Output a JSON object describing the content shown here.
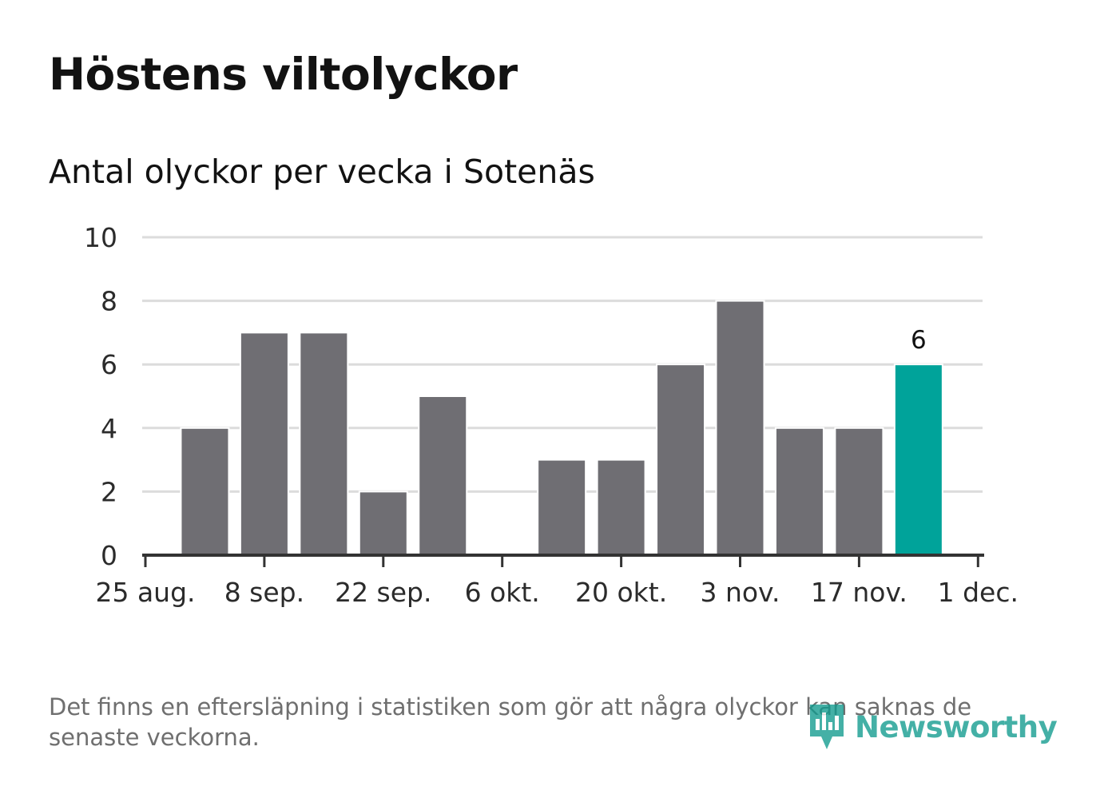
{
  "title": "Höstens viltolyckor",
  "subtitle": "Antal olyckor per vecka i Sotenäs",
  "footnote": "Det finns en eftersläpning i statistiken som gör att några olyckor kan saknas de senaste veckorna.",
  "logo": {
    "text": "Newsworthy",
    "icon": "bar-chart-badge-icon"
  },
  "colors": {
    "bar": "#6f6e73",
    "highlight": "#00a39a",
    "grid": "#dcdcdc",
    "axis": "#333333"
  },
  "chart_data": {
    "type": "bar",
    "title": "Höstens viltolyckor",
    "subtitle": "Antal olyckor per vecka i Sotenäs",
    "xlabel": "",
    "ylabel": "",
    "ylim": [
      0,
      10
    ],
    "yticks": [
      0,
      2,
      4,
      6,
      8,
      10
    ],
    "grid": true,
    "x_tick_labels": [
      "25 aug.",
      "8 sep.",
      "22 sep.",
      "6 okt.",
      "20 okt.",
      "3 nov.",
      "17 nov.",
      "1 dec."
    ],
    "x_tick_weeks": [
      0,
      2,
      4,
      6,
      8,
      10,
      12,
      14
    ],
    "week_range": [
      0,
      14.6
    ],
    "bars": [
      {
        "week": 1,
        "value": 4
      },
      {
        "week": 2,
        "value": 7
      },
      {
        "week": 3,
        "value": 7
      },
      {
        "week": 4,
        "value": 2
      },
      {
        "week": 5,
        "value": 5
      },
      {
        "week": 6,
        "value": 0
      },
      {
        "week": 7,
        "value": 3
      },
      {
        "week": 8,
        "value": 3
      },
      {
        "week": 9,
        "value": 6
      },
      {
        "week": 10,
        "value": 8
      },
      {
        "week": 11,
        "value": 4
      },
      {
        "week": 12,
        "value": 4
      },
      {
        "week": 13,
        "value": 6,
        "highlight": true,
        "label": "6"
      }
    ]
  }
}
